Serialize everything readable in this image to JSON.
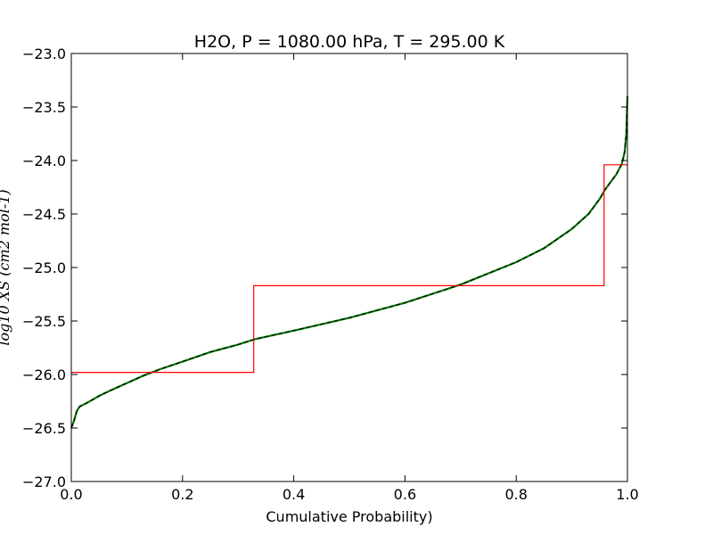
{
  "chart_data": {
    "type": "line",
    "title": "H2O, P = 1080.00 hPa, T = 295.00 K",
    "xlabel": "Cumulative Probability)",
    "ylabel": "log10 XS (cm2 mol-1)",
    "xlim": [
      0.0,
      1.0
    ],
    "ylim": [
      -27.0,
      -23.0
    ],
    "x_ticks": [
      "0.0",
      "0.2",
      "0.4",
      "0.6",
      "0.8",
      "1.0"
    ],
    "x_tick_values": [
      0.0,
      0.2,
      0.4,
      0.6,
      0.8,
      1.0
    ],
    "y_ticks": [
      "−23.0",
      "−23.5",
      "−24.0",
      "−24.5",
      "−25.0",
      "−25.5",
      "−26.0",
      "−26.5",
      "−27.0"
    ],
    "y_tick_values": [
      -23.0,
      -23.5,
      -24.0,
      -24.5,
      -25.0,
      -25.5,
      -26.0,
      -26.5,
      -27.0
    ],
    "grid": false,
    "series": [
      {
        "color": "#000000",
        "overlay_color": "#008000",
        "x": [
          0.0,
          0.005,
          0.01,
          0.015,
          0.03,
          0.05,
          0.07,
          0.1,
          0.13,
          0.16,
          0.2,
          0.25,
          0.3,
          0.33,
          0.4,
          0.5,
          0.6,
          0.7,
          0.8,
          0.85,
          0.9,
          0.93,
          0.95,
          0.96,
          0.97,
          0.98,
          0.99,
          0.995,
          0.998,
          1.0
        ],
        "y": [
          -26.5,
          -26.43,
          -26.34,
          -26.3,
          -26.26,
          -26.2,
          -26.15,
          -26.08,
          -26.01,
          -25.95,
          -25.88,
          -25.79,
          -25.72,
          -25.67,
          -25.59,
          -25.47,
          -25.33,
          -25.16,
          -24.95,
          -24.82,
          -24.64,
          -24.5,
          -24.36,
          -24.27,
          -24.2,
          -24.13,
          -24.03,
          -23.92,
          -23.75,
          -23.4
        ]
      },
      {
        "color": "#ff0000",
        "step": true,
        "x": [
          0.0,
          0.328,
          0.328,
          0.958,
          0.958,
          1.0
        ],
        "y": [
          -25.98,
          -25.98,
          -25.17,
          -25.17,
          -24.04,
          -24.04
        ]
      }
    ]
  }
}
